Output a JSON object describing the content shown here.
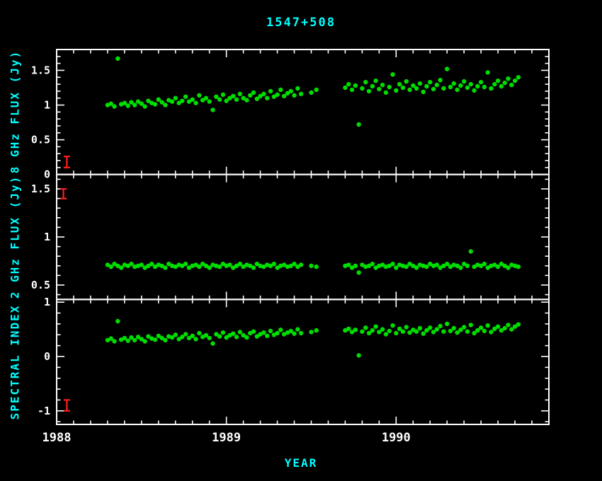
{
  "window": {
    "background": "#000000"
  },
  "chart_data": {
    "type": "scatter",
    "title": "1547+508",
    "xlabel": "YEAR",
    "xlim": [
      1988.0,
      1990.9
    ],
    "xticks": [
      1988,
      1989,
      1990
    ],
    "xtick_labels": [
      "1988",
      "1989",
      "1990"
    ],
    "xtick_minor": 0.1,
    "marker_color": "#00dd00",
    "errorbar_color": "#ff2020",
    "frame_color": "#ffffff",
    "tick_label_color": "#ffffff",
    "text_color": "#00ffff",
    "x": [
      1988.3,
      1988.32,
      1988.34,
      1988.36,
      1988.38,
      1988.4,
      1988.42,
      1988.44,
      1988.46,
      1988.48,
      1988.5,
      1988.52,
      1988.54,
      1988.56,
      1988.58,
      1988.6,
      1988.62,
      1988.64,
      1988.66,
      1988.68,
      1988.7,
      1988.72,
      1988.74,
      1988.76,
      1988.78,
      1988.8,
      1988.82,
      1988.84,
      1988.86,
      1988.88,
      1988.9,
      1988.92,
      1988.94,
      1988.96,
      1988.98,
      1989.0,
      1989.02,
      1989.04,
      1989.06,
      1989.08,
      1989.1,
      1989.12,
      1989.14,
      1989.16,
      1989.18,
      1989.2,
      1989.22,
      1989.24,
      1989.26,
      1989.28,
      1989.3,
      1989.32,
      1989.34,
      1989.36,
      1989.38,
      1989.4,
      1989.42,
      1989.44,
      1989.5,
      1989.53,
      1989.7,
      1989.72,
      1989.74,
      1989.76,
      1989.78,
      1989.8,
      1989.82,
      1989.84,
      1989.86,
      1989.88,
      1989.9,
      1989.92,
      1989.94,
      1989.96,
      1989.98,
      1990.0,
      1990.02,
      1990.04,
      1990.06,
      1990.08,
      1990.1,
      1990.12,
      1990.14,
      1990.16,
      1990.18,
      1990.2,
      1990.22,
      1990.24,
      1990.26,
      1990.28,
      1990.3,
      1990.32,
      1990.34,
      1990.36,
      1990.38,
      1990.4,
      1990.42,
      1990.44,
      1990.46,
      1990.48,
      1990.5,
      1990.52,
      1990.54,
      1990.56,
      1990.58,
      1990.6,
      1990.62,
      1990.64,
      1990.66,
      1990.68,
      1990.7,
      1990.72
    ],
    "panels": [
      {
        "id": "8ghz-flux",
        "ylabel": "8 GHz FLUX (Jy)",
        "ylim": [
          0,
          1.8
        ],
        "yticks": [
          0,
          0.5,
          1,
          1.5
        ],
        "ytick_labels": [
          "0",
          "0.5",
          "1",
          "1.5"
        ],
        "ytick_minor": 0.1,
        "errorbar": {
          "x": 1988.06,
          "y": 0.18,
          "half_height": 0.08
        },
        "values": [
          1.0,
          1.02,
          0.98,
          1.67,
          1.01,
          1.03,
          0.99,
          1.04,
          1.0,
          1.05,
          1.02,
          0.98,
          1.06,
          1.03,
          1.01,
          1.08,
          1.04,
          1.0,
          1.07,
          1.05,
          1.1,
          1.03,
          1.06,
          1.12,
          1.05,
          1.08,
          1.03,
          1.14,
          1.07,
          1.1,
          1.05,
          0.93,
          1.12,
          1.08,
          1.15,
          1.06,
          1.1,
          1.13,
          1.08,
          1.16,
          1.1,
          1.07,
          1.14,
          1.18,
          1.09,
          1.13,
          1.16,
          1.1,
          1.2,
          1.12,
          1.15,
          1.22,
          1.13,
          1.17,
          1.2,
          1.14,
          1.24,
          1.16,
          1.18,
          1.22,
          1.25,
          1.3,
          1.22,
          1.28,
          0.72,
          1.24,
          1.33,
          1.2,
          1.27,
          1.35,
          1.23,
          1.29,
          1.18,
          1.26,
          1.44,
          1.21,
          1.3,
          1.25,
          1.34,
          1.22,
          1.28,
          1.24,
          1.31,
          1.19,
          1.27,
          1.33,
          1.23,
          1.29,
          1.36,
          1.24,
          1.52,
          1.26,
          1.31,
          1.22,
          1.28,
          1.34,
          1.25,
          1.3,
          1.21,
          1.27,
          1.33,
          1.26,
          1.47,
          1.24,
          1.3,
          1.35,
          1.27,
          1.32,
          1.38,
          1.29,
          1.35,
          1.4
        ]
      },
      {
        "id": "2ghz-flux",
        "ylabel": "2 GHz FLUX (Jy)",
        "ylim": [
          0.35,
          1.65
        ],
        "yticks": [
          0.5,
          1,
          1.5
        ],
        "ytick_labels": [
          "0.5",
          "1",
          "1.5"
        ],
        "ytick_minor": 0.1,
        "errorbar": {
          "x": 1988.04,
          "y": 1.45,
          "half_height": 0.05
        },
        "values": [
          0.71,
          0.69,
          0.72,
          0.7,
          0.68,
          0.71,
          0.7,
          0.72,
          0.69,
          0.7,
          0.71,
          0.68,
          0.7,
          0.72,
          0.69,
          0.71,
          0.7,
          0.68,
          0.72,
          0.7,
          0.69,
          0.71,
          0.7,
          0.72,
          0.68,
          0.7,
          0.71,
          0.69,
          0.72,
          0.7,
          0.68,
          0.71,
          0.7,
          0.69,
          0.72,
          0.7,
          0.71,
          0.68,
          0.7,
          0.72,
          0.69,
          0.71,
          0.7,
          0.68,
          0.72,
          0.7,
          0.69,
          0.71,
          0.7,
          0.72,
          0.68,
          0.7,
          0.71,
          0.69,
          0.7,
          0.72,
          0.69,
          0.71,
          0.7,
          0.69,
          0.7,
          0.71,
          0.68,
          0.7,
          0.63,
          0.71,
          0.69,
          0.7,
          0.72,
          0.68,
          0.7,
          0.71,
          0.69,
          0.7,
          0.72,
          0.68,
          0.71,
          0.7,
          0.69,
          0.72,
          0.7,
          0.68,
          0.71,
          0.7,
          0.69,
          0.72,
          0.7,
          0.71,
          0.68,
          0.7,
          0.72,
          0.69,
          0.71,
          0.7,
          0.68,
          0.72,
          0.7,
          0.85,
          0.69,
          0.71,
          0.7,
          0.72,
          0.68,
          0.7,
          0.71,
          0.69,
          0.72,
          0.7,
          0.68,
          0.71,
          0.7,
          0.69
        ]
      },
      {
        "id": "spectral-index",
        "ylabel": "SPECTRAL INDEX",
        "ylim": [
          -1.25,
          1.05
        ],
        "yticks": [
          -1,
          0,
          1
        ],
        "ytick_labels": [
          "-1",
          "0",
          "1"
        ],
        "ytick_minor": 0.2,
        "errorbar": {
          "x": 1988.06,
          "y": -0.9,
          "half_height": 0.1
        },
        "values": [
          0.3,
          0.33,
          0.28,
          0.65,
          0.31,
          0.34,
          0.29,
          0.35,
          0.3,
          0.36,
          0.32,
          0.28,
          0.37,
          0.33,
          0.31,
          0.38,
          0.34,
          0.3,
          0.37,
          0.35,
          0.4,
          0.32,
          0.36,
          0.41,
          0.34,
          0.38,
          0.32,
          0.43,
          0.36,
          0.39,
          0.34,
          0.24,
          0.41,
          0.37,
          0.44,
          0.35,
          0.39,
          0.42,
          0.36,
          0.45,
          0.39,
          0.35,
          0.43,
          0.46,
          0.37,
          0.41,
          0.44,
          0.38,
          0.47,
          0.4,
          0.43,
          0.49,
          0.41,
          0.44,
          0.47,
          0.42,
          0.5,
          0.43,
          0.45,
          0.48,
          0.48,
          0.51,
          0.45,
          0.49,
          0.02,
          0.46,
          0.53,
          0.43,
          0.48,
          0.55,
          0.45,
          0.5,
          0.41,
          0.47,
          0.57,
          0.43,
          0.51,
          0.46,
          0.54,
          0.44,
          0.49,
          0.46,
          0.52,
          0.42,
          0.48,
          0.53,
          0.45,
          0.5,
          0.56,
          0.46,
          0.6,
          0.47,
          0.52,
          0.44,
          0.49,
          0.54,
          0.46,
          0.58,
          0.43,
          0.48,
          0.53,
          0.47,
          0.57,
          0.45,
          0.51,
          0.55,
          0.48,
          0.52,
          0.58,
          0.5,
          0.55,
          0.59
        ]
      }
    ]
  }
}
